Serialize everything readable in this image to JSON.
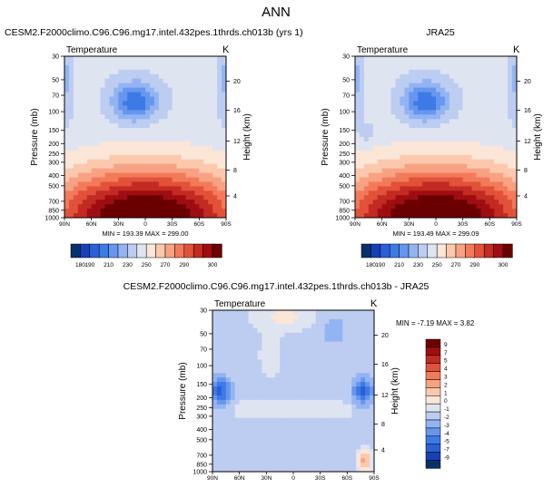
{
  "page_title": "ANN",
  "colorbar_top_ticks": [
    "180",
    "190",
    "210",
    "230",
    "250",
    "270",
    "290",
    "300"
  ],
  "colorbar_top_colors": [
    "#08306b",
    "#1440b8",
    "#2a5fd6",
    "#3d7ae6",
    "#6796ee",
    "#93b4f2",
    "#bccdf1",
    "#dfe4f1",
    "#fbe6d7",
    "#fbc8ad",
    "#f8a283",
    "#f27a5b",
    "#e2513a",
    "#c22a22",
    "#9e0d12",
    "#6b0000"
  ],
  "colorbar_diff_ticks": [
    "9",
    "7",
    "5",
    "4",
    "3",
    "2",
    "1",
    "0",
    "-1",
    "-2",
    "-3",
    "-4",
    "-5",
    "-7",
    "-9"
  ],
  "colorbar_diff_colors": [
    "#6b0000",
    "#9e0d12",
    "#c22a22",
    "#e2513a",
    "#f27a5b",
    "#f8a283",
    "#fbc8ad",
    "#fbe6d7",
    "#dfe4f1",
    "#bccdf1",
    "#93b4f2",
    "#6796ee",
    "#3d7ae6",
    "#2a5fd6",
    "#1440b8",
    "#08306b"
  ],
  "chart_data": [
    {
      "type": "heatmap",
      "title": "CESM2.F2000climo.C96.C96.mg17.intel.432pes.1thrds.ch013b (yrs 1)",
      "variable_label": "Temperature",
      "units": "K",
      "ylabel": "Pressure (mb)",
      "ylabel_right": "Height (km)",
      "x_ticks": [
        "90N",
        "60N",
        "30N",
        "0",
        "30S",
        "60S",
        "90S"
      ],
      "y_ticks": [
        "30",
        "50",
        "70",
        "100",
        "150",
        "200",
        "250",
        "300",
        "400",
        "500",
        "700",
        "850",
        "1000"
      ],
      "y_ticks_right": [
        "20",
        "16",
        "12",
        "8",
        "4"
      ],
      "stats": "MIN = 193.39   MAX = 299.00",
      "min": 193.39,
      "max": 299.0
    },
    {
      "type": "heatmap",
      "title": "JRA25",
      "variable_label": "Temperature",
      "units": "K",
      "ylabel": "Pressure (mb)",
      "ylabel_right": "Height (km)",
      "x_ticks": [
        "90N",
        "60N",
        "30N",
        "0",
        "30S",
        "60S",
        "90S"
      ],
      "y_ticks": [
        "30",
        "50",
        "70",
        "100",
        "150",
        "200",
        "250",
        "300",
        "400",
        "500",
        "700",
        "850",
        "1000"
      ],
      "y_ticks_right": [
        "20",
        "16",
        "12",
        "8",
        "4"
      ],
      "stats": "MIN = 193.49   MAX = 299.09",
      "min": 193.49,
      "max": 299.09
    },
    {
      "type": "heatmap",
      "title": "CESM2.F2000climo.C96.C96.mg17.intel.432pes.1thrds.ch013b - JRA25",
      "variable_label": "Temperature",
      "units": "K",
      "ylabel": "Pressure (mb)",
      "ylabel_right": "Height (km)",
      "x_ticks": [
        "90N",
        "60N",
        "30N",
        "0",
        "30S",
        "60S",
        "90S"
      ],
      "y_ticks": [
        "30",
        "50",
        "70",
        "100",
        "150",
        "200",
        "250",
        "300",
        "400",
        "500",
        "700",
        "850",
        "1000"
      ],
      "y_ticks_right": [
        "20",
        "16",
        "12",
        "8",
        "4"
      ],
      "stats": "MIN = -7.19  MAX =  3.82",
      "min": -7.19,
      "max": 3.82
    }
  ]
}
